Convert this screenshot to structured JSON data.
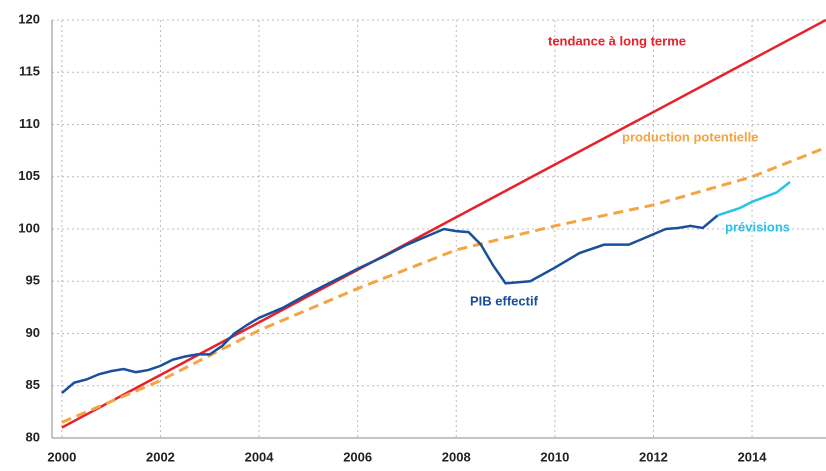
{
  "chart_data": {
    "type": "line",
    "xlim": [
      1999.8,
      2015.5
    ],
    "xticks": [
      2000,
      2002,
      2004,
      2006,
      2008,
      2010,
      2012,
      2014
    ],
    "ylim": [
      80,
      120
    ],
    "yticks": [
      80,
      85,
      90,
      95,
      100,
      105,
      110,
      115,
      120
    ],
    "grid": true,
    "series": [
      {
        "name": "tendance à long terme",
        "color": "#e8202a",
        "style": "solid",
        "x": [
          2000,
          2015.5
        ],
        "values": [
          81,
          120
        ]
      },
      {
        "name": "production potentielle",
        "color": "#f4a442",
        "style": "dashed",
        "x": [
          2000,
          2002,
          2004,
          2006,
          2008,
          2010,
          2012,
          2014,
          2015.5
        ],
        "values": [
          81.5,
          85.5,
          90.3,
          94.3,
          98,
          100.3,
          102.3,
          105,
          107.8
        ]
      },
      {
        "name": "PIB effectif",
        "color": "#1a4f9c",
        "style": "solid",
        "x": [
          2000,
          2000.25,
          2000.5,
          2000.75,
          2001,
          2001.25,
          2001.5,
          2001.75,
          2002,
          2002.25,
          2002.5,
          2002.75,
          2003,
          2003.25,
          2003.5,
          2003.75,
          2004,
          2004.5,
          2005,
          2005.5,
          2006,
          2006.5,
          2007,
          2007.5,
          2007.75,
          2008,
          2008.25,
          2008.5,
          2008.75,
          2009,
          2009.5,
          2010,
          2010.5,
          2011,
          2011.5,
          2012,
          2012.25,
          2012.5,
          2012.75,
          2013,
          2013.3
        ],
        "values": [
          84.3,
          85.3,
          85.6,
          86.1,
          86.4,
          86.6,
          86.3,
          86.5,
          86.9,
          87.5,
          87.8,
          88,
          88,
          88.8,
          90,
          90.8,
          91.5,
          92.5,
          93.8,
          95,
          96.2,
          97.3,
          98.5,
          99.5,
          100,
          99.8,
          99.7,
          98.5,
          96.5,
          94.8,
          95,
          96.3,
          97.7,
          98.5,
          98.5,
          99.5,
          100,
          100.1,
          100.3,
          100.1,
          101.3
        ]
      },
      {
        "name": "prévisions",
        "color": "#27c2e8",
        "style": "solid",
        "x": [
          2013.3,
          2013.75,
          2014,
          2014.5,
          2014.77
        ],
        "values": [
          101.3,
          102,
          102.6,
          103.5,
          104.5
        ]
      }
    ]
  }
}
